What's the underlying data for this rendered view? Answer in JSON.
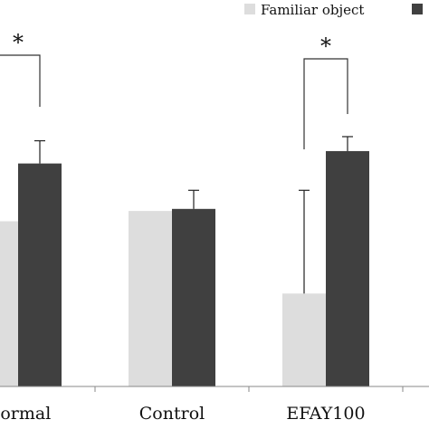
{
  "chart_data": {
    "type": "bar",
    "categories": [
      "Normal",
      "Control",
      "EFAY100"
    ],
    "category_labels": [
      "Normal",
      "Control",
      "EFAY100"
    ],
    "series": [
      {
        "name": "Familiar object",
        "color": "#dddddd",
        "values": [
          40,
          42.5,
          22.5
        ],
        "errors": [
          0,
          0,
          25
        ]
      },
      {
        "values": [
          54,
          43,
          57
        ],
        "errors": [
          5.5,
          4.5,
          3.5
        ],
        "color": "#404040"
      }
    ],
    "significance": [
      {
        "category": "Normal",
        "label": "*"
      },
      {
        "category": "EFAY100",
        "label": "*"
      }
    ],
    "ylim": [
      0,
      80
    ],
    "grid": false,
    "legend_position": "top-right",
    "title": "",
    "xlabel": "",
    "ylabel": ""
  }
}
